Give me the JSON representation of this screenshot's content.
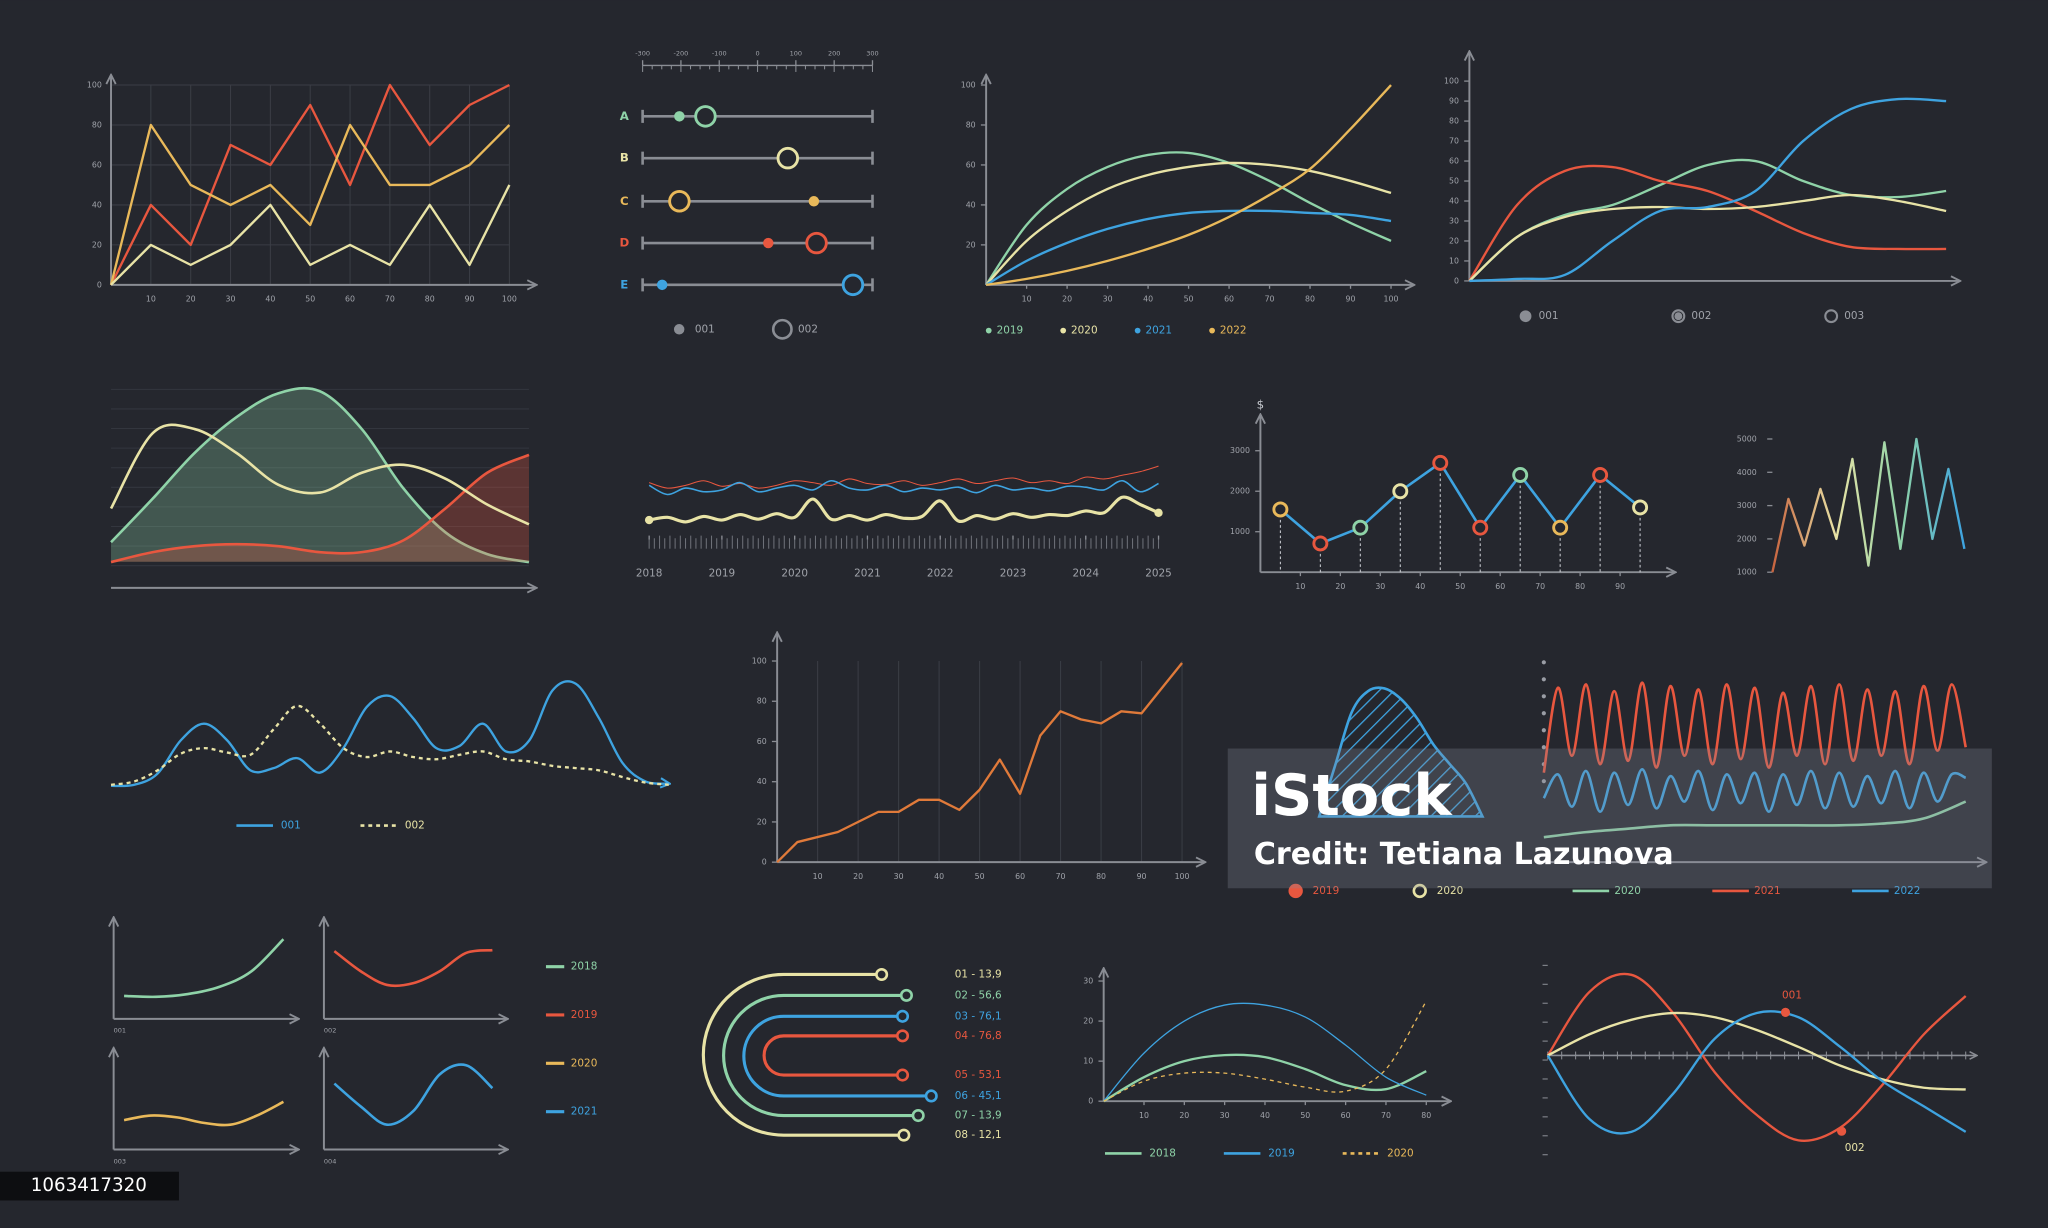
{
  "chart_data": [
    {
      "type": "line",
      "x": [
        0,
        10,
        20,
        30,
        40,
        50,
        60,
        70,
        80,
        90,
        100
      ],
      "xlim": [
        0,
        100
      ],
      "ylim": [
        0,
        100
      ],
      "xticks": [
        10,
        20,
        30,
        40,
        50,
        60,
        70,
        80,
        90,
        100
      ],
      "yticks": [
        0,
        20,
        40,
        60,
        80,
        100
      ],
      "grid": true,
      "series": [
        {
          "color": "#e8573f",
          "values": [
            0,
            40,
            20,
            70,
            60,
            90,
            50,
            100,
            70,
            90,
            100
          ]
        },
        {
          "color": "#e9b95a",
          "values": [
            0,
            80,
            50,
            40,
            50,
            30,
            80,
            50,
            50,
            60,
            80
          ]
        },
        {
          "color": "#e8e3a6",
          "values": [
            0,
            20,
            10,
            20,
            40,
            10,
            20,
            10,
            40,
            10,
            50
          ]
        }
      ]
    },
    {
      "type": "dot_range",
      "categories": [
        "A",
        "B",
        "C",
        "D",
        "E"
      ],
      "colors": [
        "#8fd3a8",
        "#e8e3a6",
        "#e9b95a",
        "#e8573f",
        "#3ea3e0"
      ],
      "xlim": [
        -300,
        300
      ],
      "xticks": [
        -300,
        -200,
        -100,
        0,
        100,
        200,
        300
      ],
      "legend_color": "#8a8d94",
      "series": [
        {
          "name": "001",
          "marker": "dot",
          "values": [
            -204,
            null,
            147,
            28,
            -249
          ]
        },
        {
          "name": "002",
          "marker": "ring",
          "values": [
            -136,
            79,
            -204,
            154,
            249
          ]
        }
      ]
    },
    {
      "type": "line",
      "smooth": true,
      "x": [
        0,
        10,
        20,
        30,
        40,
        50,
        60,
        70,
        80,
        90,
        100
      ],
      "xlim": [
        0,
        100
      ],
      "ylim": [
        0,
        100
      ],
      "xticks": [
        10,
        20,
        30,
        40,
        50,
        60,
        70,
        80,
        90,
        100
      ],
      "yticks": [
        20,
        40,
        60,
        80,
        100
      ],
      "legend_marker": "dot",
      "series": [
        {
          "name": "2019",
          "color": "#8fd3a8",
          "values": [
            0,
            30,
            48,
            59,
            65,
            66,
            61,
            52,
            41,
            31,
            22
          ]
        },
        {
          "name": "2020",
          "color": "#e8e3a6",
          "values": [
            0,
            22,
            37,
            48,
            55,
            59,
            61,
            60,
            57,
            52,
            46
          ]
        },
        {
          "name": "2021",
          "color": "#3ea3e0",
          "values": [
            0,
            12,
            21,
            28,
            33,
            36,
            37,
            37,
            36,
            35,
            32
          ]
        },
        {
          "name": "2022",
          "color": "#e9b95a",
          "values": [
            0,
            3,
            7,
            12,
            18,
            25,
            34,
            45,
            58,
            78,
            100
          ]
        }
      ]
    },
    {
      "type": "line",
      "smooth": true,
      "x": [
        0,
        10,
        20,
        30,
        40,
        50,
        60,
        70,
        80,
        90,
        100
      ],
      "xlim": [
        0,
        100
      ],
      "ylim": [
        0,
        100
      ],
      "yticks": [
        0,
        10,
        20,
        30,
        40,
        50,
        60,
        70,
        80,
        90,
        100
      ],
      "legend": [
        "001",
        "002",
        "003"
      ],
      "legend_color": "#8a8d94",
      "series": [
        {
          "color": "#8fd3a8",
          "values": [
            0,
            22,
            33,
            38,
            48,
            58,
            60,
            50,
            43,
            42,
            45
          ]
        },
        {
          "color": "#e8573f",
          "values": [
            0,
            38,
            55,
            57,
            50,
            45,
            35,
            24,
            17,
            16,
            16
          ]
        },
        {
          "color": "#e8e3a6",
          "values": [
            0,
            22,
            32,
            36,
            37,
            36,
            37,
            40,
            43,
            40,
            35
          ]
        },
        {
          "color": "#3ea3e0",
          "values": [
            0,
            1,
            3,
            20,
            35,
            37,
            45,
            70,
            86,
            91,
            90
          ]
        }
      ]
    },
    {
      "type": "area",
      "smooth": true,
      "ylim": [
        0,
        100
      ],
      "series": [
        {
          "color": "#8fd3a8",
          "fill": true,
          "values": [
            23,
            45,
            68,
            86,
            98,
            99,
            80,
            50,
            28,
            17,
            13
          ]
        },
        {
          "color": "#e8573f",
          "fill": true,
          "values": [
            13,
            18,
            21,
            22,
            21,
            18,
            18,
            24,
            40,
            58,
            67
          ]
        },
        {
          "color": "#e8e3a6",
          "fill": false,
          "values": [
            40,
            78,
            80,
            68,
            52,
            48,
            58,
            62,
            55,
            42,
            32
          ]
        }
      ]
    },
    {
      "type": "line",
      "smooth": true,
      "xlim": [
        2018,
        2025
      ],
      "ylim": [
        0,
        100
      ],
      "x": [
        2018,
        2018.25,
        2018.5,
        2018.75,
        2019,
        2019.25,
        2019.5,
        2019.75,
        2020,
        2020.25,
        2020.5,
        2020.75,
        2021,
        2021.25,
        2021.5,
        2021.75,
        2022,
        2022.25,
        2022.5,
        2022.75,
        2023,
        2023.25,
        2023.5,
        2023.75,
        2024,
        2024.25,
        2024.5,
        2024.75,
        2025
      ],
      "xticks": [
        2018,
        2019,
        2020,
        2021,
        2022,
        2023,
        2024,
        2025
      ],
      "series": [
        {
          "color": "#e8573f",
          "values": [
            58,
            52,
            55,
            60,
            54,
            57,
            52,
            55,
            60,
            58,
            55,
            62,
            57,
            56,
            60,
            55,
            58,
            62,
            57,
            60,
            63,
            58,
            60,
            57,
            64,
            62,
            66,
            70,
            76
          ]
        },
        {
          "color": "#3ea3e0",
          "values": [
            55,
            45,
            52,
            48,
            50,
            58,
            48,
            52,
            55,
            50,
            60,
            52,
            50,
            55,
            48,
            52,
            50,
            53,
            47,
            55,
            50,
            52,
            49,
            54,
            53,
            50,
            60,
            48,
            57
          ]
        },
        {
          "color": "#e8e3a6",
          "values": [
            17,
            20,
            15,
            21,
            17,
            23,
            18,
            24,
            20,
            40,
            18,
            22,
            17,
            23,
            19,
            21,
            38,
            16,
            22,
            18,
            24,
            20,
            23,
            22,
            27,
            25,
            42,
            34,
            25
          ]
        }
      ]
    },
    {
      "type": "dot_line",
      "ylabel": "$",
      "x": [
        5,
        15,
        25,
        35,
        45,
        55,
        65,
        75,
        85,
        95
      ],
      "xlim": [
        0,
        100
      ],
      "ylim": [
        0,
        3500
      ],
      "xticks": [
        10,
        20,
        30,
        40,
        50,
        60,
        70,
        80,
        90
      ],
      "yticks": [
        1000,
        2000,
        3000
      ],
      "color": "#3ea3e0",
      "values": [
        1550,
        710,
        1100,
        2000,
        2700,
        1100,
        2400,
        1100,
        2400,
        1600
      ],
      "point_colors": [
        "#e9b95a",
        "#e8573f",
        "#8fd3a8",
        "#e8e3a6",
        "#e8573f",
        "#e8573f",
        "#8fd3a8",
        "#e9b95a",
        "#e8573f",
        "#e8e3a6"
      ]
    },
    {
      "type": "line",
      "ylim": [
        1000,
        5000
      ],
      "yticks": [
        1000,
        2000,
        3000,
        4000,
        5000
      ],
      "gradient": [
        "#c8643f",
        "#e8e3a6",
        "#8fd3a8",
        "#3ea3e0"
      ],
      "series": [
        {
          "values": [
            1000,
            3200,
            1800,
            3500,
            2000,
            4400,
            1200,
            4900,
            1700,
            5000,
            2000,
            4100,
            1700
          ]
        }
      ]
    },
    {
      "type": "line",
      "smooth": true,
      "ylim": [
        0,
        100
      ],
      "legend_marker": "line",
      "series": [
        {
          "name": "001",
          "color": "#3ea3e0",
          "values": [
            4,
            5,
            15,
            45,
            60,
            45,
            18,
            20,
            29,
            16,
            38,
            75,
            85,
            65,
            38,
            40,
            60,
            35,
            45,
            90,
            96,
            65,
            25,
            8,
            6
          ]
        },
        {
          "name": "002",
          "color": "#e8e3a6",
          "dashed": true,
          "values": [
            5,
            8,
            18,
            33,
            38,
            34,
            32,
            55,
            76,
            60,
            38,
            30,
            35,
            30,
            28,
            32,
            35,
            28,
            26,
            22,
            20,
            18,
            12,
            7,
            5
          ]
        }
      ]
    },
    {
      "type": "line",
      "x": [
        0,
        5,
        15,
        25,
        30,
        35,
        40,
        45,
        50,
        55,
        60,
        65,
        70,
        75,
        80,
        85,
        90,
        100
      ],
      "xlim": [
        0,
        100
      ],
      "ylim": [
        0,
        100
      ],
      "xticks": [
        10,
        20,
        30,
        40,
        50,
        60,
        70,
        80,
        90,
        100
      ],
      "yticks": [
        0,
        20,
        40,
        60,
        80,
        100
      ],
      "grid": "x",
      "series": [
        {
          "color": "#e07a3a",
          "values": [
            0,
            10,
            15,
            25,
            25,
            31,
            31,
            26,
            36,
            51,
            34,
            63,
            75,
            71,
            69,
            75,
            74,
            99
          ]
        }
      ]
    },
    {
      "type": "waves",
      "ylim": [
        0,
        100
      ],
      "bell": {
        "color": "#3ea3e0",
        "values": [
          0,
          40,
          80,
          96,
          98,
          90,
          75,
          55,
          40,
          25,
          0
        ]
      },
      "series": [
        {
          "name": "2020",
          "color": "#8fd3a8",
          "values": [
            7,
            10,
            12,
            14,
            14,
            14,
            14,
            14,
            15,
            18,
            28
          ]
        },
        {
          "name": "2021",
          "color": "#e8573f",
          "values": [
            45,
            95,
            55,
            97,
            50,
            93,
            52,
            98,
            48,
            96,
            55,
            94,
            50,
            97,
            53,
            95,
            48,
            92,
            55,
            96,
            50,
            97,
            52,
            94,
            55,
            93,
            50,
            96,
            58,
            97,
            60
          ]
        },
        {
          "name": "2022",
          "color": "#3ea3e0",
          "values": [
            30,
            44,
            25,
            46,
            22,
            45,
            26,
            47,
            24,
            43,
            28,
            46,
            23,
            44,
            27,
            45,
            22,
            44,
            26,
            46,
            24,
            45,
            25,
            43,
            27,
            46,
            24,
            45,
            28,
            44,
            42
          ]
        }
      ],
      "legend_markers": [
        {
          "name": "2019",
          "color": "#e8573f",
          "marker": "dot"
        },
        {
          "name": "2020",
          "color": "#e8e3a6",
          "marker": "ring"
        }
      ]
    },
    {
      "type": "small_multiples",
      "ylim": [
        0,
        100
      ],
      "series": [
        {
          "name": "2018",
          "label": "001",
          "color": "#8fd3a8",
          "values": [
            18,
            17,
            20,
            28,
            45,
            80
          ]
        },
        {
          "name": "2019",
          "label": "002",
          "color": "#e8573f",
          "values": [
            67,
            45,
            30,
            32,
            45,
            65,
            68
          ]
        },
        {
          "name": "2020",
          "label": "003",
          "color": "#e9b95a",
          "values": [
            25,
            30,
            28,
            22,
            20,
            30,
            45
          ]
        },
        {
          "name": "2021",
          "label": "004",
          "color": "#3ea3e0",
          "values": [
            65,
            40,
            20,
            35,
            75,
            85,
            60
          ]
        }
      ]
    },
    {
      "type": "nested_u",
      "items": [
        {
          "label": "01 - 13,9",
          "color": "#e8e3a6"
        },
        {
          "label": "02 - 56,6",
          "color": "#8fd3a8"
        },
        {
          "label": "03 - 76,1",
          "color": "#3ea3e0"
        },
        {
          "label": "04 - 76,8",
          "color": "#e8573f"
        },
        {
          "label": "05 - 53,1",
          "color": "#e8573f"
        },
        {
          "label": "06 - 45,1",
          "color": "#3ea3e0"
        },
        {
          "label": "07 - 13,9",
          "color": "#8fd3a8"
        },
        {
          "label": "08 - 12,1",
          "color": "#e8e3a6"
        }
      ]
    },
    {
      "type": "line",
      "smooth": true,
      "x": [
        0,
        10,
        20,
        30,
        40,
        50,
        60,
        70,
        80
      ],
      "xlim": [
        0,
        80
      ],
      "ylim": [
        0,
        30
      ],
      "xticks": [
        10,
        20,
        30,
        40,
        50,
        60,
        70,
        80
      ],
      "yticks": [
        0,
        10,
        20,
        30
      ],
      "legend_marker": "line",
      "series": [
        {
          "name": "2018",
          "color": "#8fd3a8",
          "values": [
            0,
            6,
            10,
            11.5,
            11,
            8,
            4,
            3,
            7.5
          ]
        },
        {
          "name": "2019",
          "color": "#3ea3e0",
          "thin": true,
          "values": [
            0,
            12,
            20,
            24,
            24,
            21,
            14,
            6,
            1.5
          ]
        },
        {
          "name": "2020",
          "color": "#e9b95a",
          "dashed": true,
          "thin": true,
          "values": [
            0,
            5,
            7,
            7,
            5.5,
            3.5,
            2.5,
            8,
            25
          ]
        }
      ]
    },
    {
      "type": "line",
      "smooth": true,
      "ylim": [
        -1,
        1
      ],
      "annotations": [
        "001",
        "002"
      ],
      "series": [
        {
          "color": "#e8573f",
          "values": [
            0,
            0.75,
            0.95,
            0.5,
            -0.2,
            -0.7,
            -1,
            -0.85,
            -0.35,
            0.25,
            0.7
          ]
        },
        {
          "color": "#e8e3a6",
          "values": [
            0,
            0.25,
            0.42,
            0.5,
            0.45,
            0.3,
            0.1,
            -0.12,
            -0.28,
            -0.38,
            -0.4
          ]
        },
        {
          "color": "#3ea3e0",
          "values": [
            0,
            -0.75,
            -0.9,
            -0.45,
            0.2,
            0.5,
            0.45,
            0.1,
            -0.3,
            -0.6,
            -0.9
          ]
        }
      ]
    }
  ],
  "watermark": {
    "brand": "iStock",
    "credit": "Credit: Tetiana Lazunova"
  },
  "image_id": "1063417320"
}
